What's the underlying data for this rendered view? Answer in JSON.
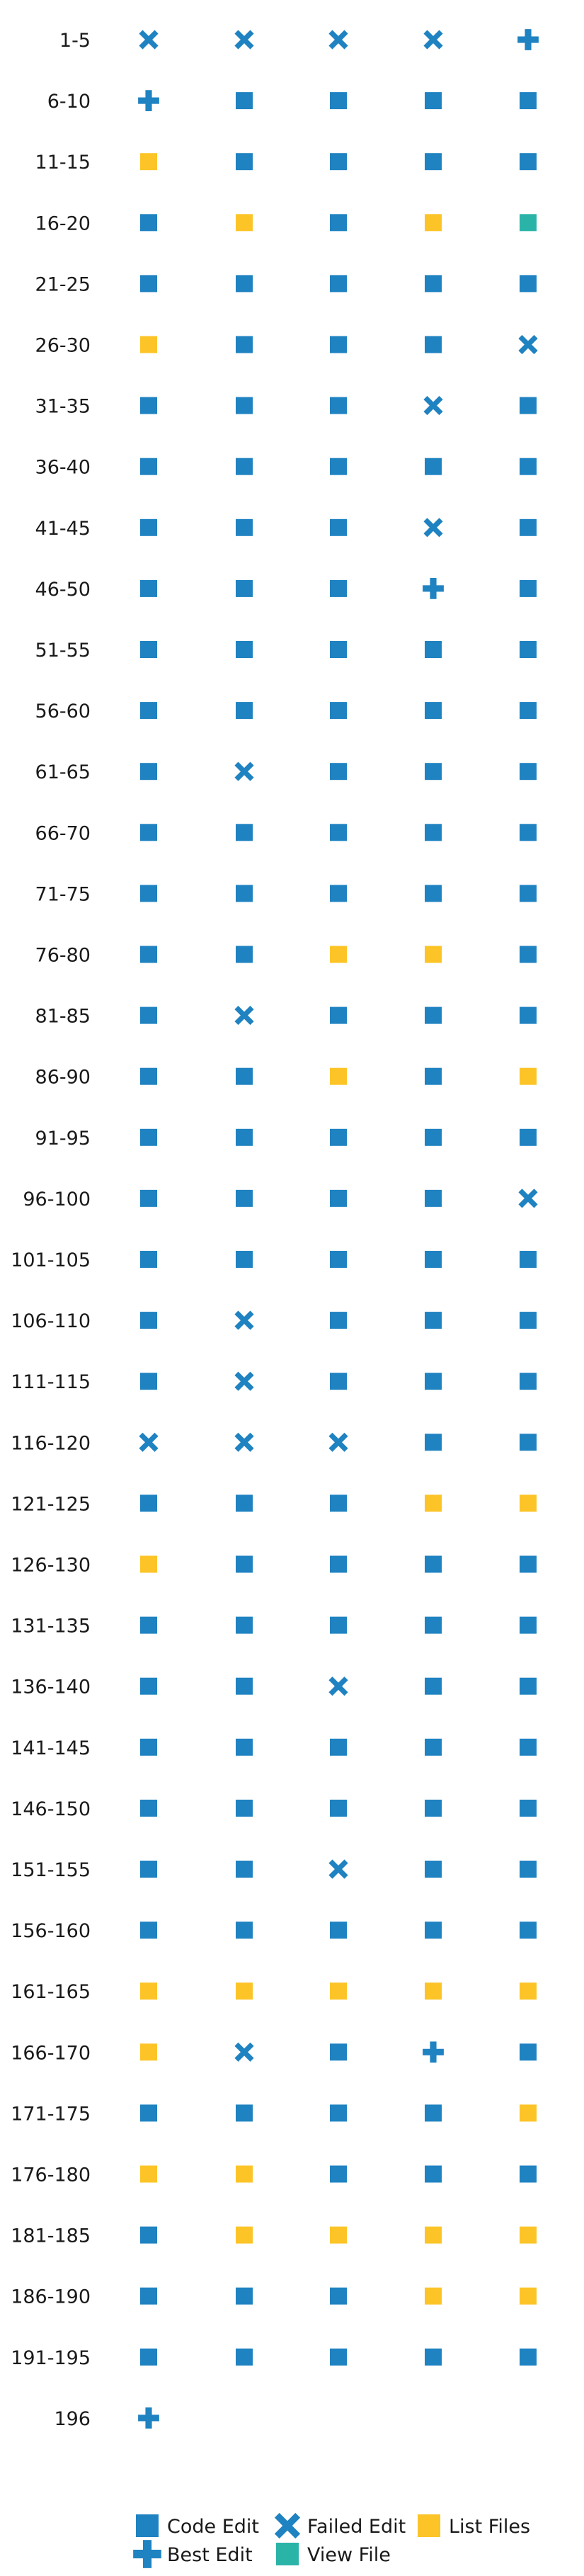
{
  "chart_data": {
    "type": "table",
    "legend_position": "bottom",
    "grid": false,
    "colors": {
      "code": "#1f82c1",
      "best": "#1f82c1",
      "failed": "#1f82c1",
      "view": "#2ab3a7",
      "list": "#fcc427"
    },
    "legend": [
      {
        "key": "code",
        "label": "Code Edit"
      },
      {
        "key": "best",
        "label": "Best Edit"
      },
      {
        "key": "failed",
        "label": "Failed Edit"
      },
      {
        "key": "view",
        "label": "View File"
      },
      {
        "key": "list",
        "label": "List Files"
      }
    ],
    "rows": [
      {
        "label": "1-5",
        "steps": [
          "failed",
          "failed",
          "failed",
          "failed",
          "best"
        ]
      },
      {
        "label": "6-10",
        "steps": [
          "best",
          "code",
          "code",
          "code",
          "code"
        ]
      },
      {
        "label": "11-15",
        "steps": [
          "list",
          "code",
          "code",
          "code",
          "code"
        ]
      },
      {
        "label": "16-20",
        "steps": [
          "code",
          "list",
          "code",
          "list",
          "view"
        ]
      },
      {
        "label": "21-25",
        "steps": [
          "code",
          "code",
          "code",
          "code",
          "code"
        ]
      },
      {
        "label": "26-30",
        "steps": [
          "list",
          "code",
          "code",
          "code",
          "failed"
        ]
      },
      {
        "label": "31-35",
        "steps": [
          "code",
          "code",
          "code",
          "failed",
          "code"
        ]
      },
      {
        "label": "36-40",
        "steps": [
          "code",
          "code",
          "code",
          "code",
          "code"
        ]
      },
      {
        "label": "41-45",
        "steps": [
          "code",
          "code",
          "code",
          "failed",
          "code"
        ]
      },
      {
        "label": "46-50",
        "steps": [
          "code",
          "code",
          "code",
          "best",
          "code"
        ]
      },
      {
        "label": "51-55",
        "steps": [
          "code",
          "code",
          "code",
          "code",
          "code"
        ]
      },
      {
        "label": "56-60",
        "steps": [
          "code",
          "code",
          "code",
          "code",
          "code"
        ]
      },
      {
        "label": "61-65",
        "steps": [
          "code",
          "failed",
          "code",
          "code",
          "code"
        ]
      },
      {
        "label": "66-70",
        "steps": [
          "code",
          "code",
          "code",
          "code",
          "code"
        ]
      },
      {
        "label": "71-75",
        "steps": [
          "code",
          "code",
          "code",
          "code",
          "code"
        ]
      },
      {
        "label": "76-80",
        "steps": [
          "code",
          "code",
          "list",
          "list",
          "code"
        ]
      },
      {
        "label": "81-85",
        "steps": [
          "code",
          "failed",
          "code",
          "code",
          "code"
        ]
      },
      {
        "label": "86-90",
        "steps": [
          "code",
          "code",
          "list",
          "code",
          "list"
        ]
      },
      {
        "label": "91-95",
        "steps": [
          "code",
          "code",
          "code",
          "code",
          "code"
        ]
      },
      {
        "label": "96-100",
        "steps": [
          "code",
          "code",
          "code",
          "code",
          "failed"
        ]
      },
      {
        "label": "101-105",
        "steps": [
          "code",
          "code",
          "code",
          "code",
          "code"
        ]
      },
      {
        "label": "106-110",
        "steps": [
          "code",
          "failed",
          "code",
          "code",
          "code"
        ]
      },
      {
        "label": "111-115",
        "steps": [
          "code",
          "failed",
          "code",
          "code",
          "code"
        ]
      },
      {
        "label": "116-120",
        "steps": [
          "failed",
          "failed",
          "failed",
          "code",
          "code"
        ]
      },
      {
        "label": "121-125",
        "steps": [
          "code",
          "code",
          "code",
          "list",
          "list"
        ]
      },
      {
        "label": "126-130",
        "steps": [
          "list",
          "code",
          "code",
          "code",
          "code"
        ]
      },
      {
        "label": "131-135",
        "steps": [
          "code",
          "code",
          "code",
          "code",
          "code"
        ]
      },
      {
        "label": "136-140",
        "steps": [
          "code",
          "code",
          "failed",
          "code",
          "code"
        ]
      },
      {
        "label": "141-145",
        "steps": [
          "code",
          "code",
          "code",
          "code",
          "code"
        ]
      },
      {
        "label": "146-150",
        "steps": [
          "code",
          "code",
          "code",
          "code",
          "code"
        ]
      },
      {
        "label": "151-155",
        "steps": [
          "code",
          "code",
          "failed",
          "code",
          "code"
        ]
      },
      {
        "label": "156-160",
        "steps": [
          "code",
          "code",
          "code",
          "code",
          "code"
        ]
      },
      {
        "label": "161-165",
        "steps": [
          "list",
          "list",
          "list",
          "list",
          "list"
        ]
      },
      {
        "label": "166-170",
        "steps": [
          "list",
          "failed",
          "code",
          "best",
          "code"
        ]
      },
      {
        "label": "171-175",
        "steps": [
          "code",
          "code",
          "code",
          "code",
          "list"
        ]
      },
      {
        "label": "176-180",
        "steps": [
          "list",
          "list",
          "code",
          "code",
          "code"
        ]
      },
      {
        "label": "181-185",
        "steps": [
          "code",
          "list",
          "list",
          "list",
          "list"
        ]
      },
      {
        "label": "186-190",
        "steps": [
          "code",
          "code",
          "code",
          "list",
          "list"
        ]
      },
      {
        "label": "191-195",
        "steps": [
          "code",
          "code",
          "code",
          "code",
          "code"
        ]
      },
      {
        "label": "196",
        "steps": [
          "best"
        ]
      }
    ]
  }
}
